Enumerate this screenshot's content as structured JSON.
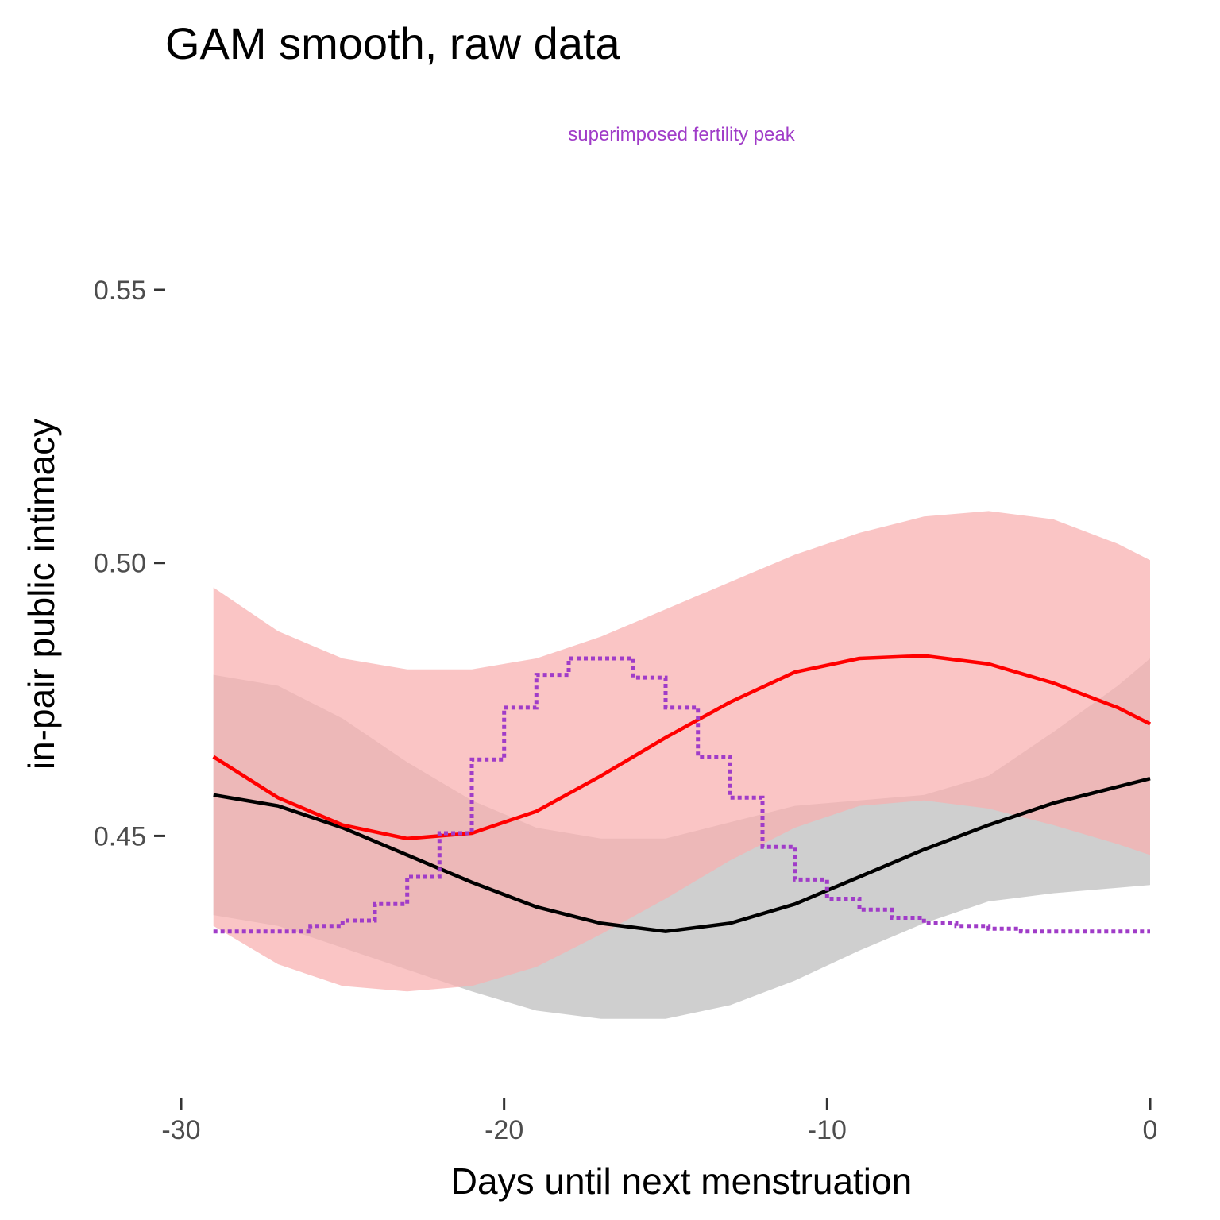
{
  "chart_data": {
    "type": "line",
    "title": "GAM smooth, raw data",
    "xlabel": "Days until next menstruation",
    "ylabel": "in-pair public intimacy",
    "annotation": "superimposed fertility peak",
    "xlim": [
      -30,
      0
    ],
    "ylim": [
      0.407,
      0.574
    ],
    "x_ticks": [
      -30,
      -20,
      -10,
      0
    ],
    "x_tick_labels": [
      "-30",
      "-20",
      "-10",
      "0"
    ],
    "y_ticks": [
      0.45,
      0.5,
      0.55
    ],
    "y_tick_labels": [
      "0.45",
      "0.50",
      "0.55"
    ],
    "grid": false,
    "legend": "none",
    "series": [
      {
        "kind": "band",
        "color": "#bdbdbd",
        "x": [
          -29,
          -27,
          -25,
          -23,
          -21,
          -19,
          -17,
          -15,
          -13,
          -11,
          -9,
          -7,
          -5,
          -3,
          -1,
          0
        ],
        "lower": [
          0.4355,
          0.4335,
          0.4295,
          0.4255,
          0.4215,
          0.418,
          0.4165,
          0.4165,
          0.419,
          0.4235,
          0.429,
          0.434,
          0.438,
          0.4395,
          0.4405,
          0.441
        ],
        "upper": [
          0.4795,
          0.4775,
          0.4715,
          0.4635,
          0.4565,
          0.4515,
          0.4495,
          0.4495,
          0.4525,
          0.4555,
          0.4565,
          0.4575,
          0.461,
          0.469,
          0.4775,
          0.4825
        ]
      },
      {
        "kind": "band",
        "color": "#f8aeae",
        "x": [
          -29,
          -27,
          -25,
          -23,
          -21,
          -19,
          -17,
          -15,
          -13,
          -11,
          -9,
          -7,
          -5,
          -3,
          -1,
          0
        ],
        "lower": [
          0.4335,
          0.4265,
          0.4225,
          0.4215,
          0.4225,
          0.426,
          0.432,
          0.4385,
          0.4455,
          0.4515,
          0.4555,
          0.4565,
          0.455,
          0.452,
          0.4485,
          0.4465
        ],
        "upper": [
          0.4955,
          0.4875,
          0.4825,
          0.4805,
          0.4805,
          0.4825,
          0.4865,
          0.4915,
          0.4965,
          0.5015,
          0.5055,
          0.5085,
          0.5095,
          0.508,
          0.5035,
          0.5005
        ]
      },
      {
        "kind": "line",
        "color": "#000000",
        "x": [
          -29,
          -27,
          -25,
          -23,
          -21,
          -19,
          -17,
          -15,
          -13,
          -11,
          -9,
          -7,
          -5,
          -3,
          -1,
          0
        ],
        "y": [
          0.4575,
          0.4555,
          0.4515,
          0.4465,
          0.4415,
          0.437,
          0.434,
          0.4325,
          0.434,
          0.4375,
          0.4425,
          0.4475,
          0.452,
          0.456,
          0.459,
          0.4605
        ]
      },
      {
        "kind": "line",
        "color": "#ff0000",
        "x": [
          -29,
          -27,
          -25,
          -23,
          -21,
          -19,
          -17,
          -15,
          -13,
          -11,
          -9,
          -7,
          -5,
          -3,
          -1,
          0
        ],
        "y": [
          0.4645,
          0.457,
          0.452,
          0.4495,
          0.4505,
          0.4545,
          0.461,
          0.468,
          0.4745,
          0.48,
          0.4825,
          0.483,
          0.4815,
          0.478,
          0.4735,
          0.4705
        ]
      },
      {
        "kind": "step",
        "style": "dotted",
        "color": "#a03cc8",
        "x": [
          -29,
          -27,
          -26,
          -25,
          -24,
          -23,
          -22,
          -21,
          -20,
          -19,
          -18,
          -17,
          -16,
          -15,
          -14,
          -13,
          -12,
          -11,
          -10,
          -9,
          -8,
          -7,
          -6,
          -5,
          -4,
          -3,
          -2,
          -1,
          0
        ],
        "y": [
          0.4325,
          0.4325,
          0.4335,
          0.4345,
          0.4375,
          0.4425,
          0.4505,
          0.464,
          0.4735,
          0.4795,
          0.4825,
          0.4825,
          0.479,
          0.4735,
          0.4645,
          0.457,
          0.448,
          0.442,
          0.4385,
          0.4365,
          0.435,
          0.434,
          0.4335,
          0.433,
          0.4325,
          0.4325,
          0.4325,
          0.4325,
          0.4325
        ]
      }
    ]
  }
}
